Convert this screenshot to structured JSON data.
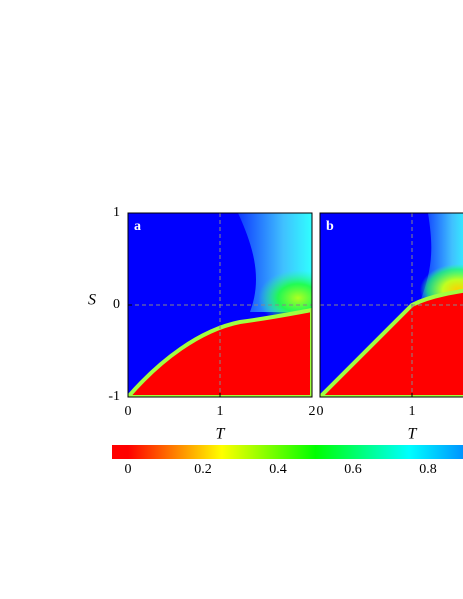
{
  "chart_data": [
    {
      "type": "heatmap",
      "panel_label": "a",
      "xlabel": "T",
      "ylabel": "S",
      "xlim": [
        0,
        2
      ],
      "ylim": [
        -1,
        1
      ],
      "xticks": [
        0,
        1,
        2
      ],
      "yticks": [
        -1,
        0,
        1
      ],
      "hlines": [
        0
      ],
      "vlines": [
        1
      ]
    },
    {
      "type": "heatmap",
      "panel_label": "b",
      "xlabel": "T",
      "xlim": [
        0,
        2
      ],
      "ylim": [
        -1,
        1
      ],
      "xticks": [
        0,
        1
      ],
      "hlines": [
        0
      ],
      "vlines": [
        1
      ]
    }
  ],
  "colorbar": {
    "clim": [
      0,
      1
    ],
    "ticks": [
      0,
      0.2,
      0.4,
      0.6,
      0.8
    ]
  }
}
